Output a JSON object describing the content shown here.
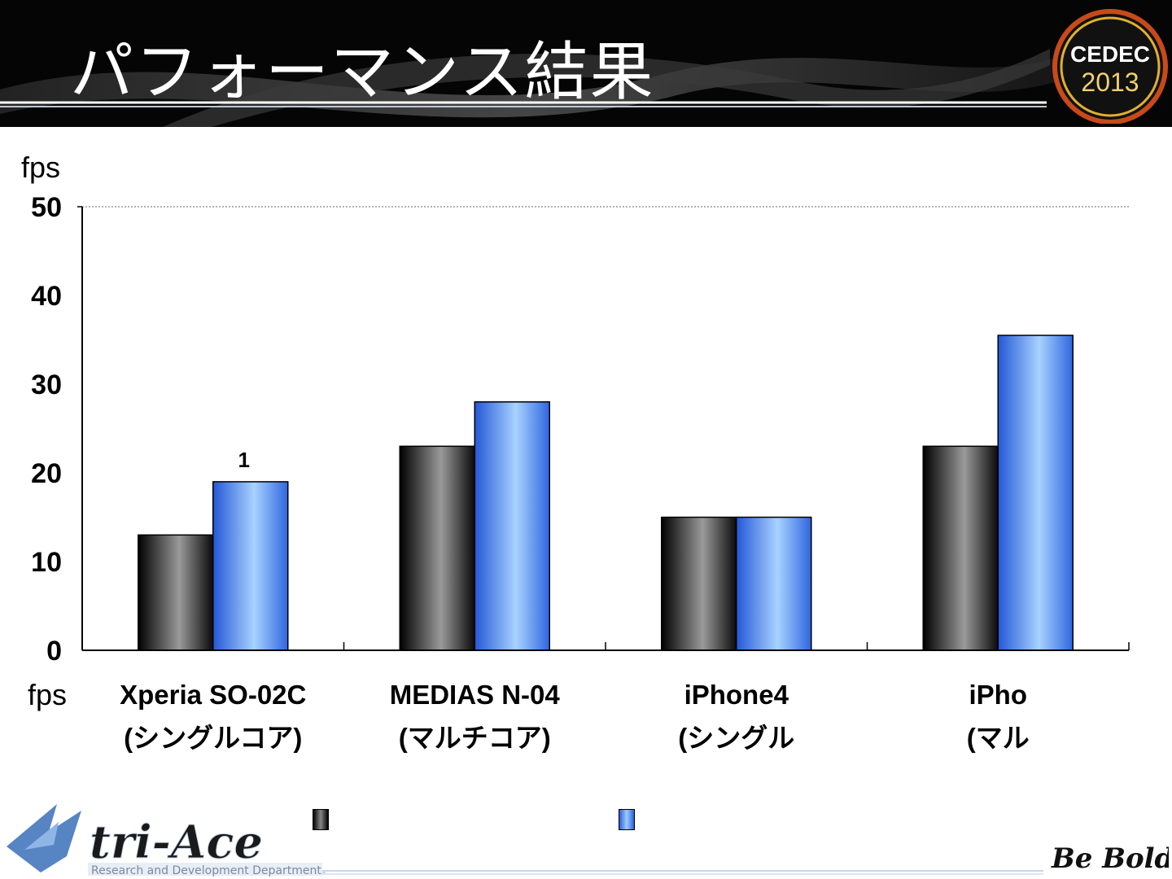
{
  "slide": {
    "title": "パフォーマンス結果"
  },
  "logos": {
    "cedec_top": "CEDEC",
    "cedec_year": "2013",
    "company": "tri-Ace",
    "department": "Research and Development Department",
    "slogan": "Be Bold!"
  },
  "colors": {
    "series1": "#1a1a1a",
    "series2": "#4d8df5",
    "header_bg": "#050505"
  },
  "chart_data": {
    "type": "bar",
    "unit_top": "fps",
    "unit_bottom": "fps",
    "ylim": [
      0,
      50
    ],
    "yticks": [
      "0",
      "10",
      "20",
      "30",
      "40",
      "50"
    ],
    "categories": [
      {
        "line1": "Xperia SO-02C",
        "line2": "(シングルコア)"
      },
      {
        "line1": "MEDIAS N-04",
        "line2": "(マルチコア)"
      },
      {
        "line1": "iPhone4",
        "line2": "(シングル"
      },
      {
        "line1": "iPho",
        "line2": "(マル"
      }
    ],
    "series": [
      {
        "values": [
          13,
          23,
          15,
          23
        ]
      },
      {
        "values": [
          19,
          28,
          15,
          35.5
        ]
      }
    ],
    "annotations": [
      {
        "text": "1",
        "category_index": 0,
        "series_index": 1
      }
    ],
    "gridline_top": true,
    "legend_position": "bottom"
  }
}
